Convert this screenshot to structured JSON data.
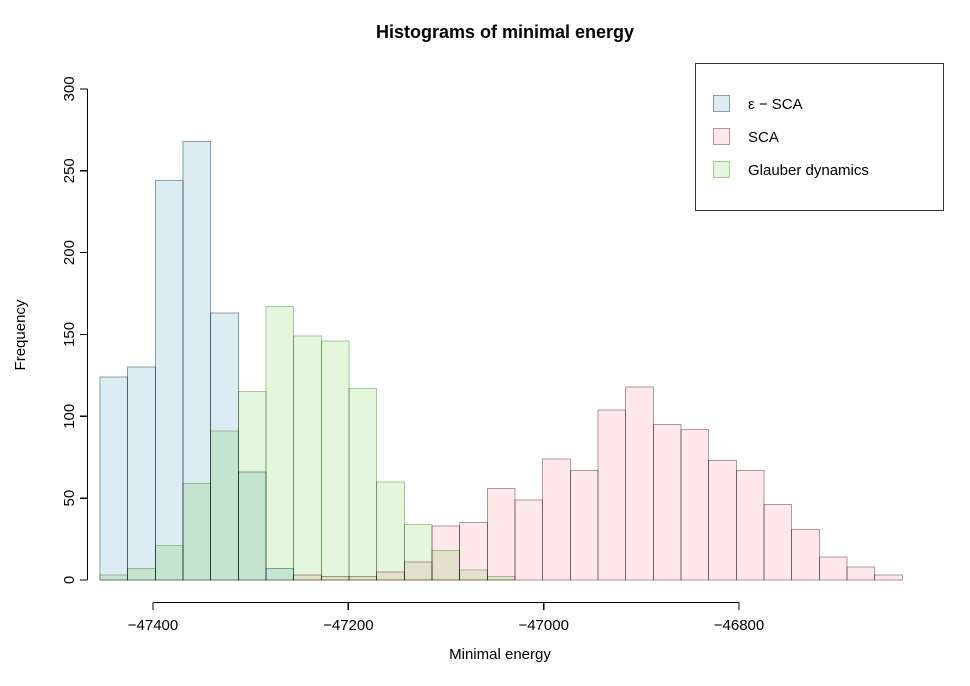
{
  "title": "Histograms of minimal energy",
  "chart_data": {
    "type": "bar",
    "subtype": "overlaid-histograms",
    "title": "Histograms of minimal energy",
    "xlabel": "Minimal energy",
    "ylabel": "Frequency",
    "x_ticks": [
      -47400,
      -47200,
      -47000,
      -46800
    ],
    "y_ticks": [
      0,
      50,
      100,
      150,
      200,
      250,
      300
    ],
    "xlim": [
      -47470,
      -46570
    ],
    "ylim": [
      0,
      300
    ],
    "grid": false,
    "legend_position": "topright",
    "bin_width": 28.33,
    "series": [
      {
        "name": "ε − SCA",
        "fill": "#dcecf2",
        "border": "#85a0ac",
        "bin_start": -47454.3,
        "freqs": [
          124,
          130,
          244,
          268,
          163,
          66,
          7
        ]
      },
      {
        "name": "SCA",
        "fill": "#fde8ec",
        "border": "#b494a0",
        "bin_start": -47256.0,
        "freqs": [
          3,
          2,
          2,
          5,
          11,
          33,
          35,
          56,
          49,
          74,
          67,
          104,
          118,
          95,
          92,
          73,
          67,
          46,
          31,
          14,
          8,
          3
        ]
      },
      {
        "name": "Glauber dynamics",
        "fill": "#e4f7dc",
        "border": "#a6c79c",
        "bin_start": -47454.3,
        "freqs": [
          3,
          7,
          21,
          59,
          91,
          115,
          167,
          149,
          146,
          117,
          60,
          34,
          18,
          6,
          2
        ]
      }
    ]
  }
}
